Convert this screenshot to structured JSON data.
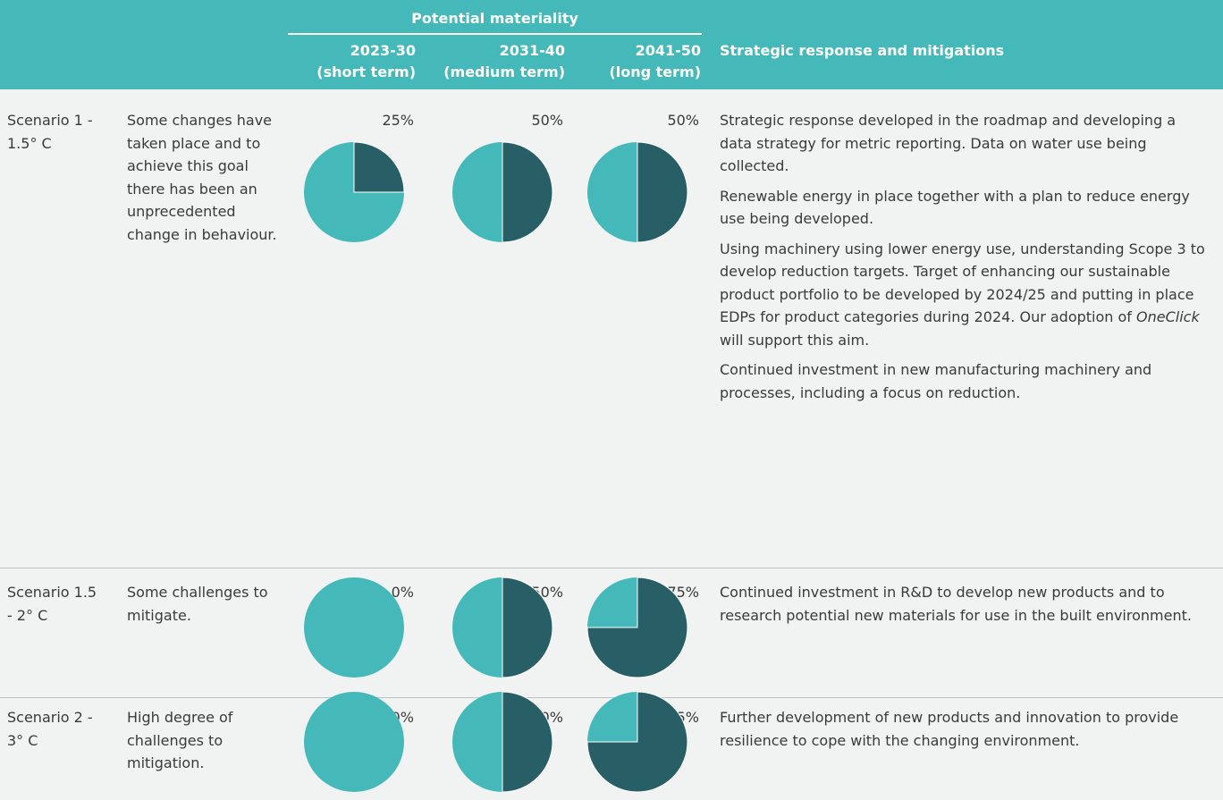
{
  "header": {
    "group": "Potential materiality",
    "columns": [
      {
        "period": "2023-30",
        "term": "(short term)"
      },
      {
        "period": "2031-40",
        "term": "(medium term)"
      },
      {
        "period": "2041-50",
        "term": "(long term)"
      }
    ],
    "response": "Strategic response and mitigations"
  },
  "rows": [
    {
      "scenario": "Scenario 1 - 1.5° C",
      "description": "Some changes have taken place and to achieve this goal there has been an unprecedented change in behaviour.",
      "values": [
        25,
        50,
        50
      ],
      "value_labels": [
        "25%",
        "50%",
        "50%"
      ],
      "response": [
        [
          {
            "text": "Strategic response developed in the roadmap and developing a data strategy for metric reporting. Data on water use being collected."
          }
        ],
        [
          {
            "text": "Renewable energy in place together with a plan to reduce energy use being developed."
          }
        ],
        [
          {
            "text": "Using machinery using lower energy use, understanding Scope 3 to develop reduction targets. Target of enhancing our sustainable product portfolio to be developed by 2024/25 and putting in place EDPs for product categories during 2024. Our adoption of "
          },
          {
            "text": "OneClick",
            "italic": true
          },
          {
            "text": " will support this aim."
          }
        ],
        [
          {
            "text": "Continued investment in new manufacturing machinery and processes, including a focus on reduction."
          }
        ]
      ]
    },
    {
      "scenario": "Scenario 1.5 - 2° C",
      "description": "Some challenges to mitigate.",
      "values": [
        0,
        50,
        75
      ],
      "value_labels": [
        "0%",
        "50%",
        "75%"
      ],
      "response": [
        [
          {
            "text": "Continued investment in R&D to develop new products and to research potential new materials for use in the built environment."
          }
        ]
      ]
    },
    {
      "scenario": "Scenario 2 - 3° C",
      "description": "High degree of challenges to mitigation.",
      "values": [
        0,
        50,
        75
      ],
      "value_labels": [
        "0%",
        "50%",
        "75%"
      ],
      "response": [
        [
          {
            "text": "Further development of new products and innovation to provide resilience to cope with the changing environment."
          }
        ]
      ]
    }
  ],
  "colors": {
    "header": "#45b9ba",
    "pie_base": "#45b9ba",
    "pie_value": "#285f66"
  }
}
